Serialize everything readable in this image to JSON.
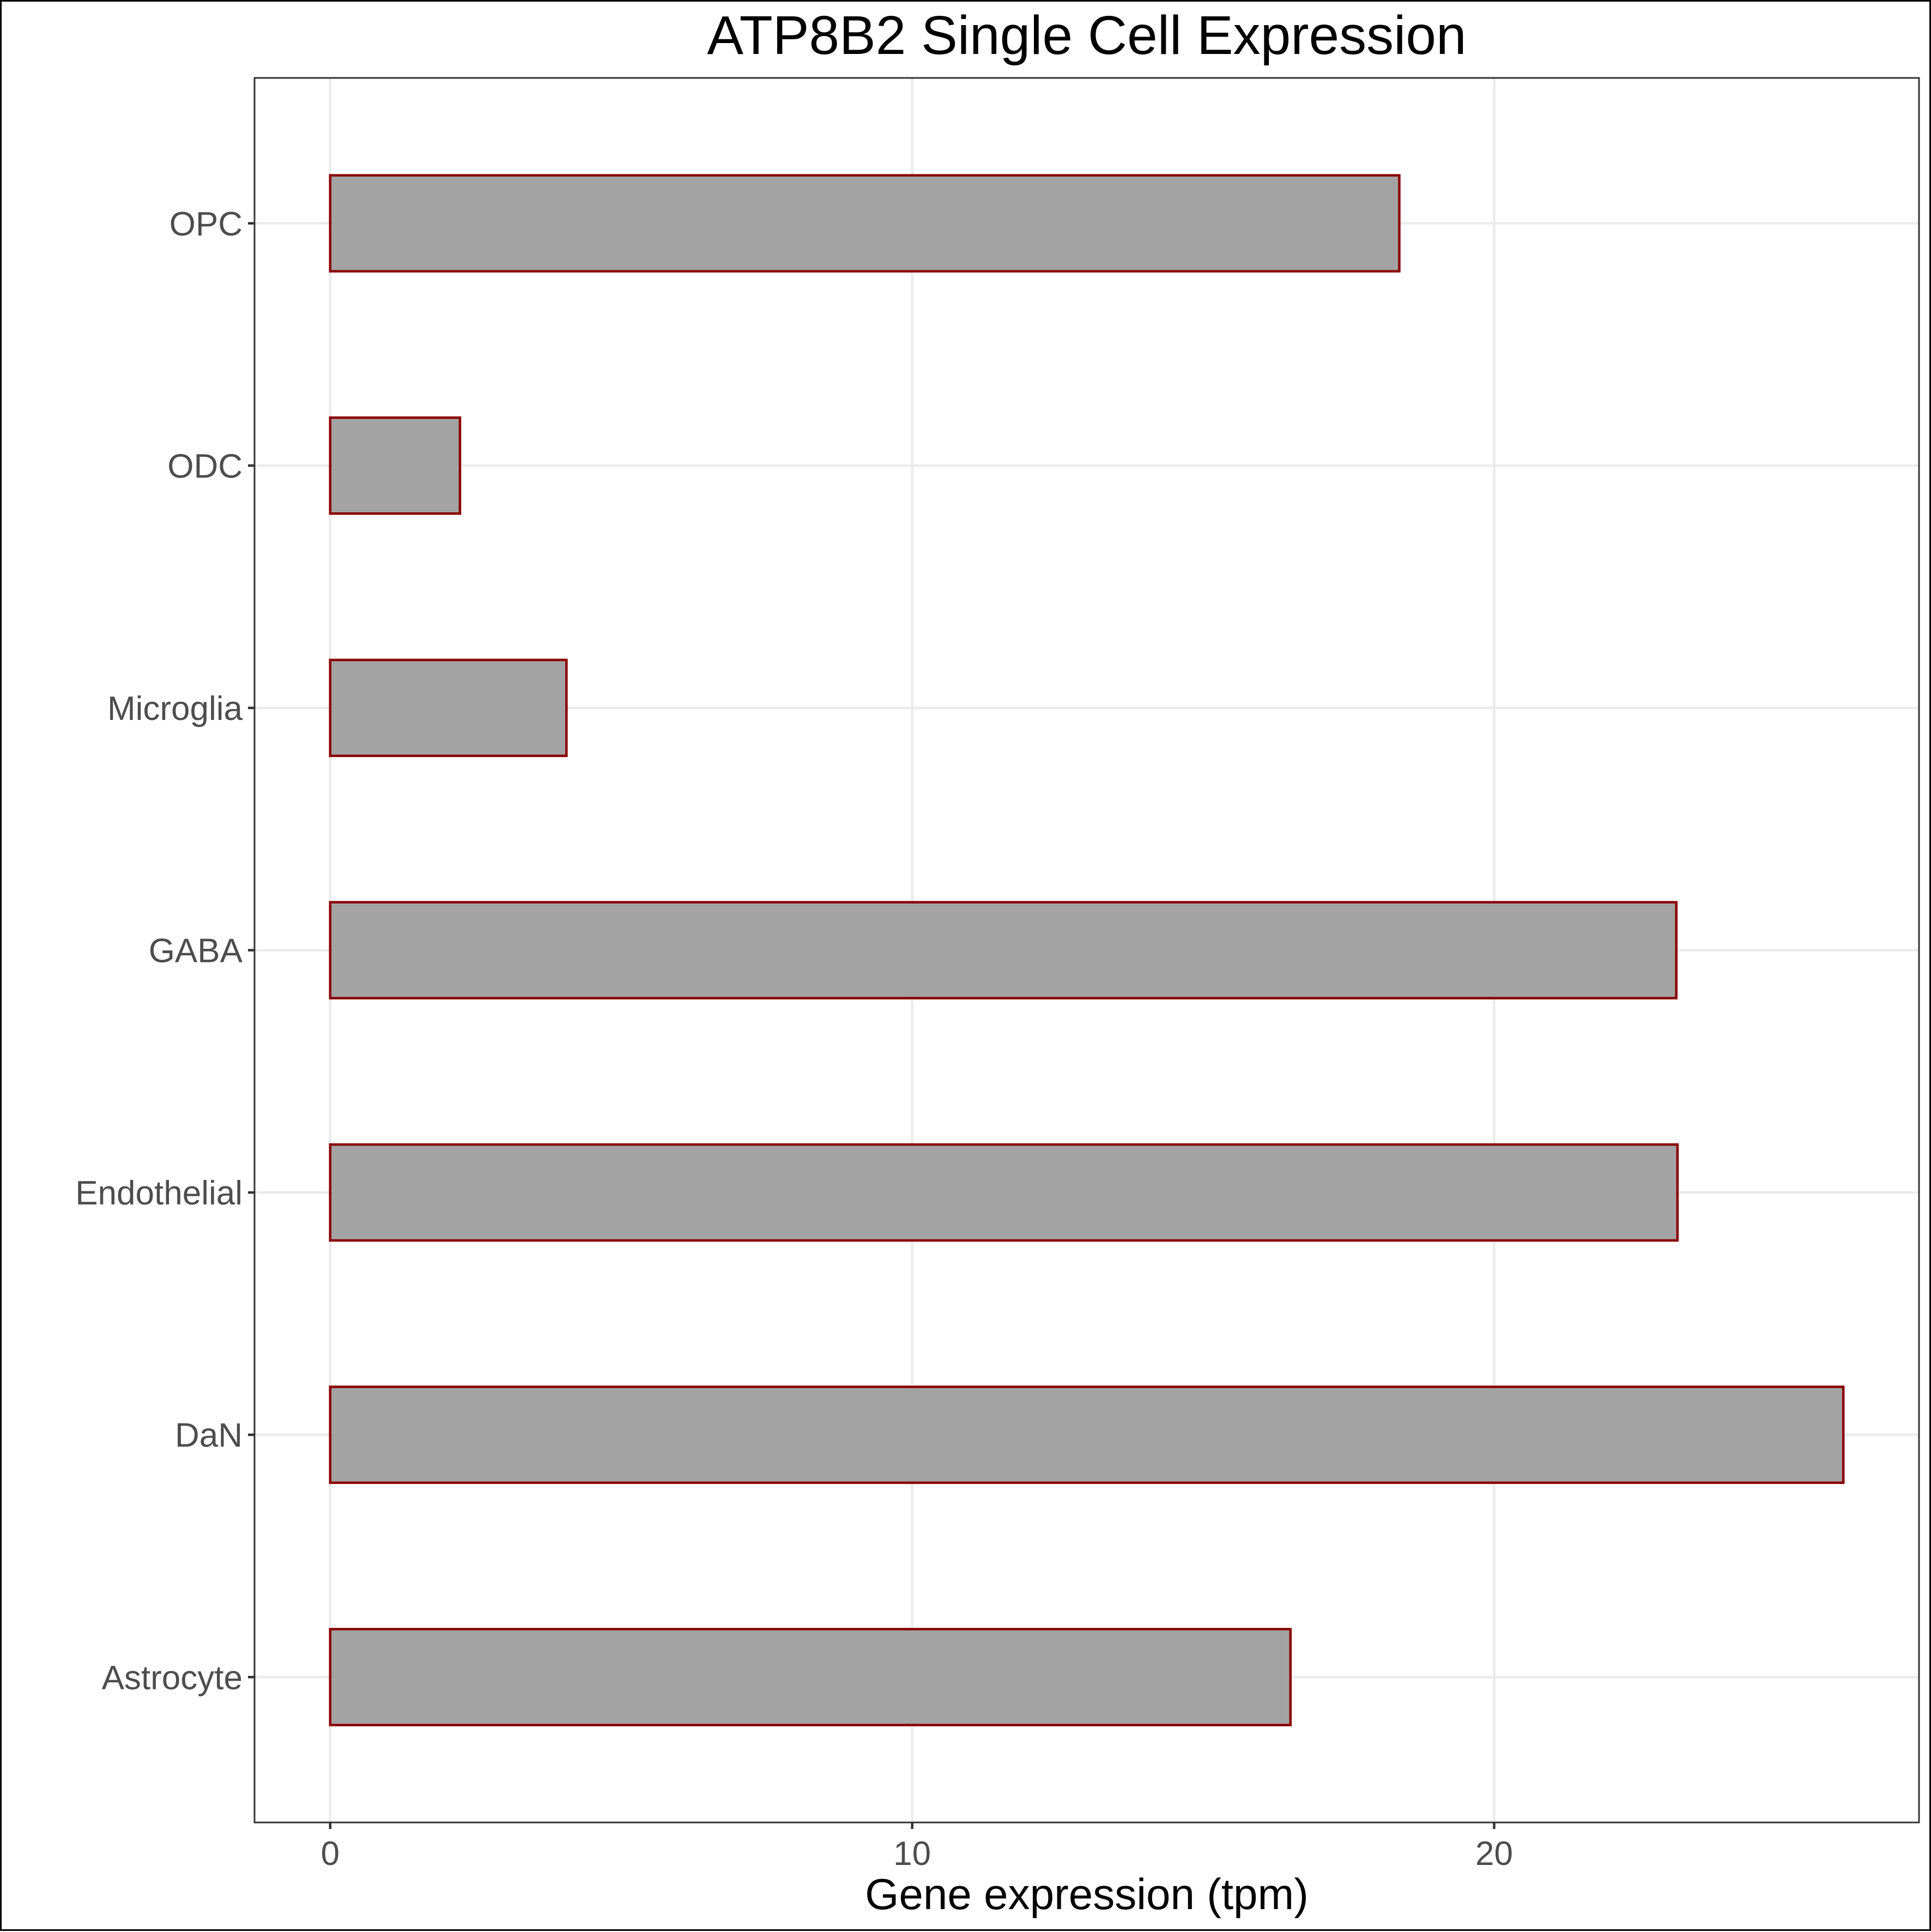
{
  "chart_data": {
    "type": "bar",
    "orientation": "horizontal",
    "title": "ATP8B2 Single Cell Expression",
    "xlabel": "Gene expression (tpm)",
    "ylabel": "",
    "categories": [
      "Astrocyte",
      "DaN",
      "Endothelial",
      "GABA",
      "Microglia",
      "ODC",
      "OPC"
    ],
    "values": [
      16.5,
      26.0,
      23.15,
      23.13,
      4.06,
      2.23,
      18.37
    ],
    "xlim": [
      -1.3,
      27.3
    ],
    "xticks": [
      0,
      10,
      20
    ],
    "xtick_labels": [
      "0",
      "10",
      "20"
    ],
    "grid": true,
    "legend": "none",
    "colors": {
      "bar_fill": "#a3a3a3",
      "bar_outline": "#8b0000",
      "grid": "#ebebeb",
      "panel_border": "#333333"
    }
  }
}
